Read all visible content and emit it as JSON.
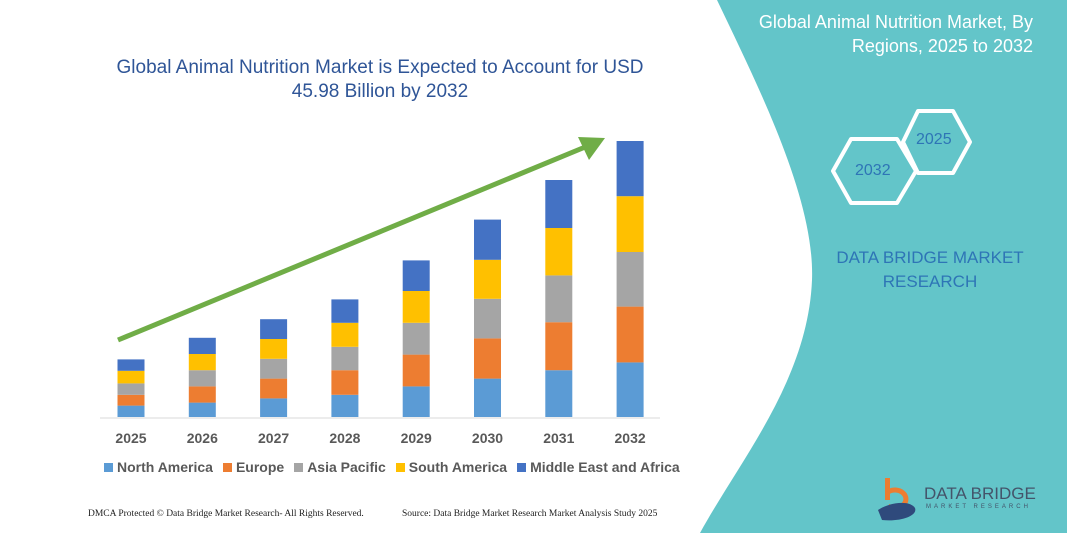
{
  "header": {
    "title": "Global Animal Nutrition Market is Expected to Account for USD 45.98 Billion by 2032"
  },
  "side_panel": {
    "title": "Global Animal Nutrition Market, By Regions, 2025 to 2032",
    "hex_start": "2025",
    "hex_end": "2032",
    "brand": "DATA BRIDGE MARKET RESEARCH",
    "logo_text": "DATA BRIDGE",
    "logo_sub": "MARKET RESEARCH",
    "color": "#63c5c9"
  },
  "footer": {
    "left": "DMCA Protected © Data Bridge Market Research- All Rights Reserved.",
    "right": "Source: Data Bridge Market Research Market Analysis Study 2025"
  },
  "chart_data": {
    "type": "bar",
    "stacked": true,
    "title": "Global Animal Nutrition Market is Expected to Account for USD 45.98 Billion by 2032",
    "categories": [
      "2025",
      "2026",
      "2027",
      "2028",
      "2029",
      "2030",
      "2031",
      "2032"
    ],
    "series": [
      {
        "name": "North America",
        "color": "#5b9bd5",
        "values": [
          1.9,
          2.4,
          3.1,
          3.7,
          5.1,
          6.4,
          7.8,
          9.1
        ]
      },
      {
        "name": "Europe",
        "color": "#ed7d31",
        "values": [
          1.8,
          2.7,
          3.3,
          4.1,
          5.3,
          6.7,
          8.0,
          9.3
        ]
      },
      {
        "name": "Asia Pacific",
        "color": "#a5a5a5",
        "values": [
          1.9,
          2.7,
          3.3,
          3.9,
          5.3,
          6.6,
          7.8,
          9.1
        ]
      },
      {
        "name": "South America",
        "color": "#ffc000",
        "values": [
          2.1,
          2.7,
          3.3,
          4.0,
          5.3,
          6.5,
          7.9,
          9.3
        ]
      },
      {
        "name": "Middle East and Africa",
        "color": "#4472c4",
        "values": [
          1.9,
          2.7,
          3.3,
          3.9,
          5.1,
          6.7,
          8.0,
          9.2
        ]
      }
    ],
    "trend_arrow_color": "#70ad47",
    "legend": "bottom",
    "grid": false,
    "y_axis_shown": false
  }
}
